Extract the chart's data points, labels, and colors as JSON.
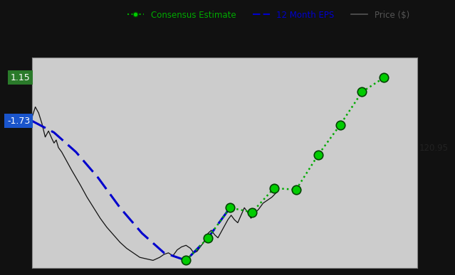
{
  "background_color": "#111111",
  "plot_bg_color": "#cccccc",
  "label_1_15": "1.15",
  "label_neg173": "-1.73",
  "label_12095": "120.95",
  "label_1_15_bg": "#2a7a2a",
  "label_neg173_bg": "#1a55cc",
  "ylim": [
    -11.5,
    2.5
  ],
  "xlim": [
    0,
    17.5
  ],
  "grid_color": "#aaaaaa",
  "eps_color": "#0000cc",
  "consensus_color": "#00aa00",
  "price_color": "#111111",
  "marker_face": "#00cc00",
  "marker_edge": "#004400",
  "marker_size": 9,
  "eps_x": [
    0,
    1,
    2,
    3,
    4,
    5,
    6,
    7,
    8,
    9,
    10,
    11,
    12,
    13,
    14,
    15,
    16
  ],
  "eps_y": [
    -1.73,
    -2.5,
    -3.8,
    -5.5,
    -7.5,
    -9.2,
    -10.5,
    -11.0,
    -9.5,
    -7.5,
    -7.8,
    -6.2,
    -6.3,
    -4.0,
    -2.0,
    0.2,
    1.15
  ],
  "blue_end_idx": 9,
  "green_start_idx": 7,
  "price_t": [
    0.0,
    0.15,
    0.3,
    0.45,
    0.6,
    0.75,
    0.9,
    1.0,
    1.1,
    1.2,
    1.35,
    1.5,
    1.65,
    1.8,
    2.0,
    2.2,
    2.5,
    2.8,
    3.1,
    3.4,
    3.7,
    4.0,
    4.3,
    4.6,
    4.9,
    5.2,
    5.5,
    5.8,
    6.0,
    6.2,
    6.4,
    6.6,
    6.8,
    7.0,
    7.2,
    7.35,
    7.5,
    7.65,
    7.8,
    7.9,
    8.0,
    8.15,
    8.3,
    8.45,
    8.6,
    8.75,
    8.9,
    9.05,
    9.2,
    9.35,
    9.5,
    9.65,
    9.8,
    9.95,
    10.1,
    10.3,
    10.5,
    10.7,
    10.9,
    11.1
  ],
  "price_y": [
    -1.5,
    -0.8,
    -1.2,
    -1.9,
    -2.8,
    -2.4,
    -2.9,
    -3.2,
    -3.0,
    -3.5,
    -3.8,
    -4.2,
    -4.6,
    -5.0,
    -5.5,
    -6.0,
    -6.8,
    -7.5,
    -8.2,
    -8.8,
    -9.3,
    -9.8,
    -10.2,
    -10.5,
    -10.8,
    -10.9,
    -11.0,
    -10.8,
    -10.6,
    -10.5,
    -10.7,
    -10.3,
    -10.1,
    -10.0,
    -10.2,
    -10.5,
    -10.4,
    -10.1,
    -9.8,
    -9.5,
    -9.2,
    -9.0,
    -9.3,
    -9.5,
    -9.1,
    -8.7,
    -8.3,
    -8.0,
    -8.3,
    -8.5,
    -8.0,
    -7.5,
    -7.8,
    -8.2,
    -7.9,
    -7.6,
    -7.2,
    -7.0,
    -6.8,
    -6.5
  ]
}
